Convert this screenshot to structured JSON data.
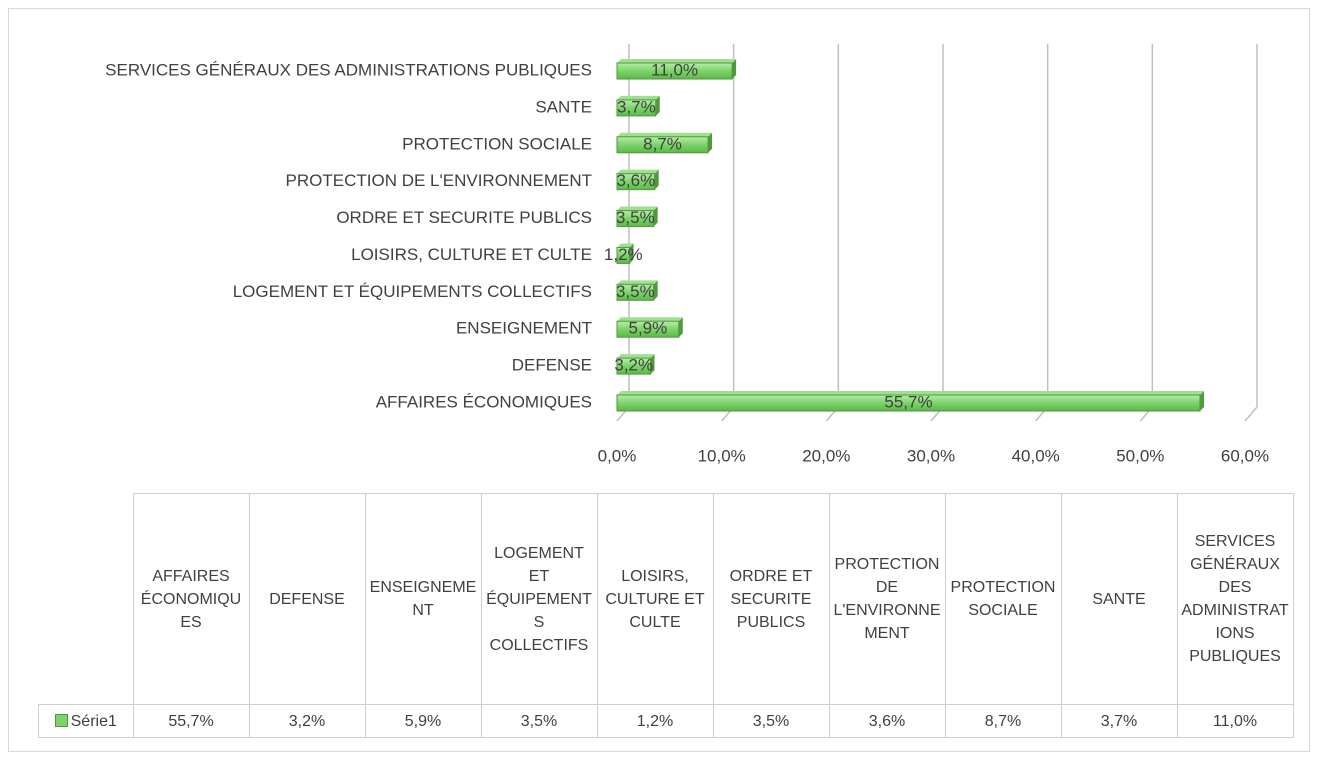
{
  "chart_data": {
    "type": "bar",
    "orientation": "horizontal",
    "categories": [
      "AFFAIRES ÉCONOMIQUES",
      "DEFENSE",
      "ENSEIGNEMENT",
      "LOGEMENT ET ÉQUIPEMENTS COLLECTIFS",
      "LOISIRS, CULTURE ET CULTE",
      "ORDRE ET SECURITE PUBLICS",
      "PROTECTION DE L'ENVIRONNEMENT",
      "PROTECTION SOCIALE",
      "SANTE",
      "SERVICES GÉNÉRAUX DES ADMINISTRATIONS PUBLIQUES"
    ],
    "series": [
      {
        "name": "Série1",
        "color": "#7dd36a",
        "values": [
          55.7,
          3.2,
          5.9,
          3.5,
          1.2,
          3.5,
          3.6,
          8.7,
          3.7,
          11.0
        ],
        "value_labels": [
          "55,7%",
          "3,2%",
          "5,9%",
          "3,5%",
          "1,2%",
          "3,5%",
          "3,6%",
          "8,7%",
          "3,7%",
          "11,0%"
        ]
      }
    ],
    "xlim": [
      0,
      60
    ],
    "xticks": [
      {
        "value": 0,
        "label": "0,0%"
      },
      {
        "value": 10,
        "label": "10,0%"
      },
      {
        "value": 20,
        "label": "20,0%"
      },
      {
        "value": 30,
        "label": "30,0%"
      },
      {
        "value": 40,
        "label": "40,0%"
      },
      {
        "value": 50,
        "label": "50,0%"
      },
      {
        "value": 60,
        "label": "60,0%"
      }
    ],
    "grid": true,
    "data_table": true
  }
}
